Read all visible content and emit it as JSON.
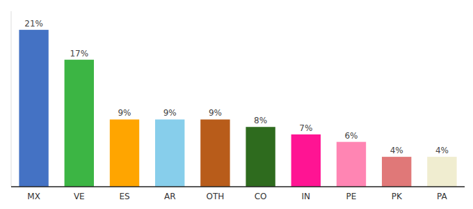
{
  "chart_data": {
    "type": "bar",
    "categories": [
      "MX",
      "VE",
      "ES",
      "AR",
      "OTH",
      "CO",
      "IN",
      "PE",
      "PK",
      "PA"
    ],
    "values": [
      21,
      17,
      9,
      9,
      9,
      8,
      7,
      6,
      4,
      4
    ],
    "value_labels": [
      "21%",
      "17%",
      "9%",
      "9%",
      "9%",
      "8%",
      "7%",
      "6%",
      "4%",
      "4%"
    ],
    "colors": [
      "#4472C4",
      "#3CB544",
      "#FFA500",
      "#87CEEB",
      "#B85C1A",
      "#2E6B1E",
      "#FF1493",
      "#FF85B3",
      "#E07878",
      "#F0EDD0"
    ],
    "ylim": [
      0,
      23.5
    ],
    "data_labels": true,
    "tick_labels": "x"
  }
}
